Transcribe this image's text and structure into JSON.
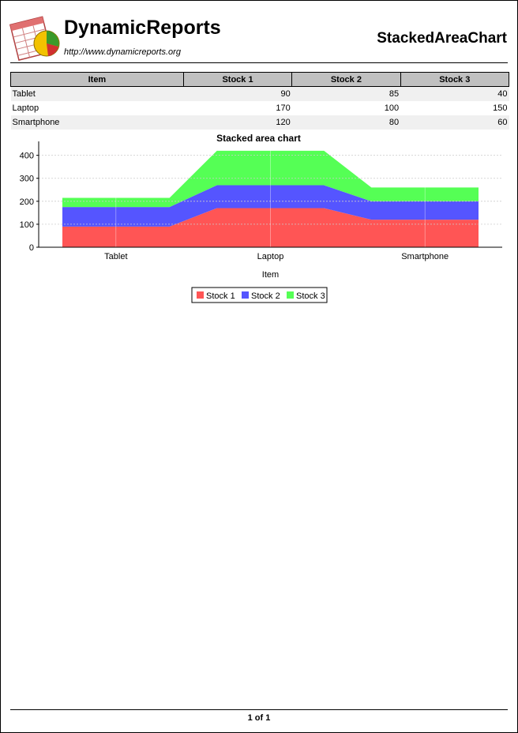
{
  "header": {
    "brand": "DynamicReports",
    "url": "http://www.dynamicreports.org",
    "report_title": "StackedAreaChart"
  },
  "table": {
    "columns": [
      "Item",
      "Stock 1",
      "Stock 2",
      "Stock 3"
    ],
    "rows": [
      [
        "Tablet",
        "90",
        "85",
        "40"
      ],
      [
        "Laptop",
        "170",
        "100",
        "150"
      ],
      [
        "Smartphone",
        "120",
        "80",
        "60"
      ]
    ]
  },
  "chart_data": {
    "type": "area",
    "stacked": true,
    "title": "Stacked area chart",
    "xlabel": "Item",
    "ylabel": "",
    "categories": [
      "Tablet",
      "Laptop",
      "Smartphone"
    ],
    "series": [
      {
        "name": "Stock 1",
        "values": [
          90,
          170,
          120
        ],
        "color": "#ff5555"
      },
      {
        "name": "Stock 2",
        "values": [
          85,
          100,
          80
        ],
        "color": "#5555ff"
      },
      {
        "name": "Stock 3",
        "values": [
          40,
          150,
          60
        ],
        "color": "#55ff55"
      }
    ],
    "yticks": [
      0,
      100,
      200,
      300,
      400
    ],
    "ylim": [
      0,
      440
    ],
    "grid": true,
    "legend": "bottom"
  },
  "footer": {
    "page_number": "1 of 1"
  }
}
